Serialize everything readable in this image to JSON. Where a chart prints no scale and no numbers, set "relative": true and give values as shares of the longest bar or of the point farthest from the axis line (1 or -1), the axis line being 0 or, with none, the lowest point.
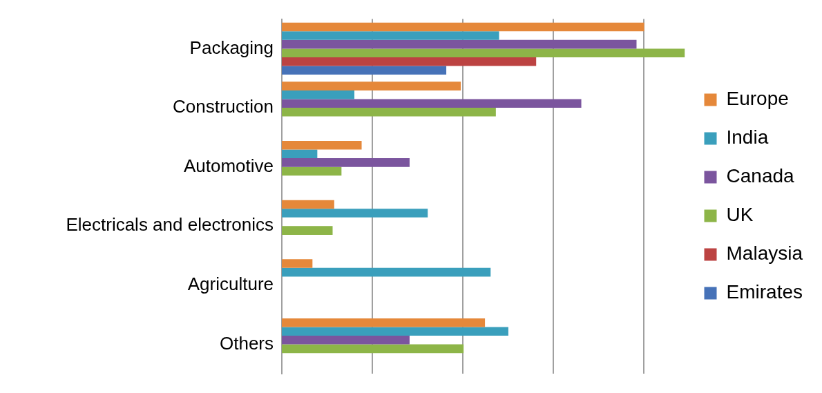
{
  "chart_data": {
    "type": "bar",
    "orientation": "horizontal",
    "relative": true,
    "grid": "x",
    "legend": "right",
    "categories": [
      "Packaging",
      "Construction",
      "Automotive",
      "Electricals and electronics",
      "Agriculture",
      "Others"
    ],
    "series": [
      {
        "name": "Europe",
        "color": "#e5883a",
        "values": [
          0.899,
          0.444,
          0.198,
          0.13,
          0.076,
          0.504
        ]
      },
      {
        "name": "India",
        "color": "#3a9fbc",
        "values": [
          0.539,
          0.18,
          0.088,
          0.362,
          0.518,
          0.562
        ]
      },
      {
        "name": "Canada",
        "color": "#7b559e",
        "values": [
          0.88,
          0.743,
          0.317,
          null,
          null,
          0.317
        ]
      },
      {
        "name": "UK",
        "color": "#8db548",
        "values": [
          1,
          0.531,
          0.148,
          0.126,
          null,
          0.451
        ]
      },
      {
        "name": "Malaysia",
        "color": "#bc4342",
        "values": [
          0.631,
          null,
          null,
          null,
          null,
          null
        ]
      },
      {
        "name": "Emirates",
        "color": "#4672b8",
        "values": [
          0.408,
          null,
          null,
          null,
          null,
          null
        ]
      }
    ]
  }
}
